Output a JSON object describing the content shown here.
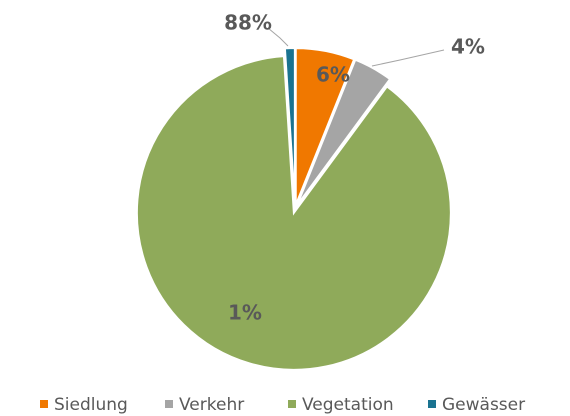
{
  "chart_data": {
    "type": "pie",
    "categories": [
      "Siedlung",
      "Verkehr",
      "Vegetation",
      "Gewässer"
    ],
    "values": [
      6,
      4,
      88,
      1
    ],
    "value_labels": [
      "6%",
      "4%",
      "88%",
      "1%"
    ],
    "colors": [
      "#f07800",
      "#a5a5a5",
      "#8faa5a",
      "#1a7390"
    ],
    "legend": "bottom"
  }
}
